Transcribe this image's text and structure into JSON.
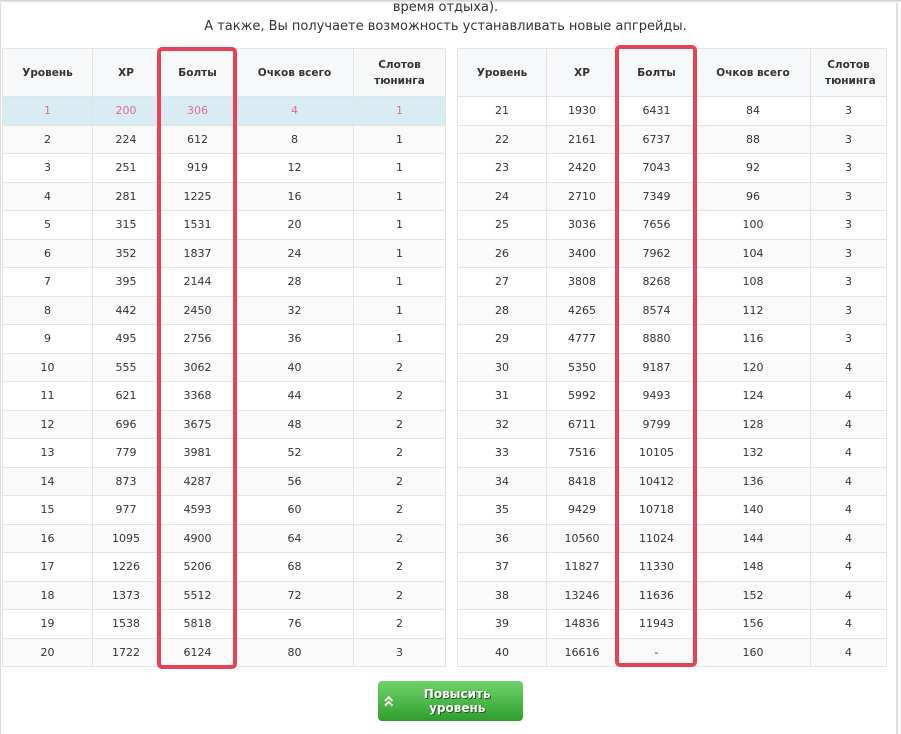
{
  "intro": {
    "line1": "время отдыха).",
    "line2": "А также, Вы получаете возможность устанавливать новые апгрейды."
  },
  "headers": [
    "Уровень",
    "XP",
    "Болты",
    "Очков всего",
    "Слотов тюнинга"
  ],
  "left_rows": [
    [
      "1",
      "200",
      "306",
      "4",
      "1"
    ],
    [
      "2",
      "224",
      "612",
      "8",
      "1"
    ],
    [
      "3",
      "251",
      "919",
      "12",
      "1"
    ],
    [
      "4",
      "281",
      "1225",
      "16",
      "1"
    ],
    [
      "5",
      "315",
      "1531",
      "20",
      "1"
    ],
    [
      "6",
      "352",
      "1837",
      "24",
      "1"
    ],
    [
      "7",
      "395",
      "2144",
      "28",
      "1"
    ],
    [
      "8",
      "442",
      "2450",
      "32",
      "1"
    ],
    [
      "9",
      "495",
      "2756",
      "36",
      "1"
    ],
    [
      "10",
      "555",
      "3062",
      "40",
      "2"
    ],
    [
      "11",
      "621",
      "3368",
      "44",
      "2"
    ],
    [
      "12",
      "696",
      "3675",
      "48",
      "2"
    ],
    [
      "13",
      "779",
      "3981",
      "52",
      "2"
    ],
    [
      "14",
      "873",
      "4287",
      "56",
      "2"
    ],
    [
      "15",
      "977",
      "4593",
      "60",
      "2"
    ],
    [
      "16",
      "1095",
      "4900",
      "64",
      "2"
    ],
    [
      "17",
      "1226",
      "5206",
      "68",
      "2"
    ],
    [
      "18",
      "1373",
      "5512",
      "72",
      "2"
    ],
    [
      "19",
      "1538",
      "5818",
      "76",
      "2"
    ],
    [
      "20",
      "1722",
      "6124",
      "80",
      "3"
    ]
  ],
  "right_rows": [
    [
      "21",
      "1930",
      "6431",
      "84",
      "3"
    ],
    [
      "22",
      "2161",
      "6737",
      "88",
      "3"
    ],
    [
      "23",
      "2420",
      "7043",
      "92",
      "3"
    ],
    [
      "24",
      "2710",
      "7349",
      "96",
      "3"
    ],
    [
      "25",
      "3036",
      "7656",
      "100",
      "3"
    ],
    [
      "26",
      "3400",
      "7962",
      "104",
      "3"
    ],
    [
      "27",
      "3808",
      "8268",
      "108",
      "3"
    ],
    [
      "28",
      "4265",
      "8574",
      "112",
      "3"
    ],
    [
      "29",
      "4777",
      "8880",
      "116",
      "3"
    ],
    [
      "30",
      "5350",
      "9187",
      "120",
      "4"
    ],
    [
      "31",
      "5992",
      "9493",
      "124",
      "4"
    ],
    [
      "32",
      "6711",
      "9799",
      "128",
      "4"
    ],
    [
      "33",
      "7516",
      "10105",
      "132",
      "4"
    ],
    [
      "34",
      "8418",
      "10412",
      "136",
      "4"
    ],
    [
      "35",
      "9429",
      "10718",
      "140",
      "4"
    ],
    [
      "36",
      "10560",
      "11024",
      "144",
      "4"
    ],
    [
      "37",
      "11827",
      "11330",
      "148",
      "4"
    ],
    [
      "38",
      "13246",
      "11636",
      "152",
      "4"
    ],
    [
      "39",
      "14836",
      "11943",
      "156",
      "4"
    ],
    [
      "40",
      "16616",
      "-",
      "160",
      "4"
    ]
  ],
  "highlight_row": 1,
  "button": {
    "label": "Повысить уровень",
    "icon": "double-chevron-up-icon"
  },
  "colors": {
    "highlight_text": "#e46b8e",
    "highlight_bg": "#d9ecf4",
    "annotation": "#e8415a",
    "button": "#3cb43a"
  }
}
